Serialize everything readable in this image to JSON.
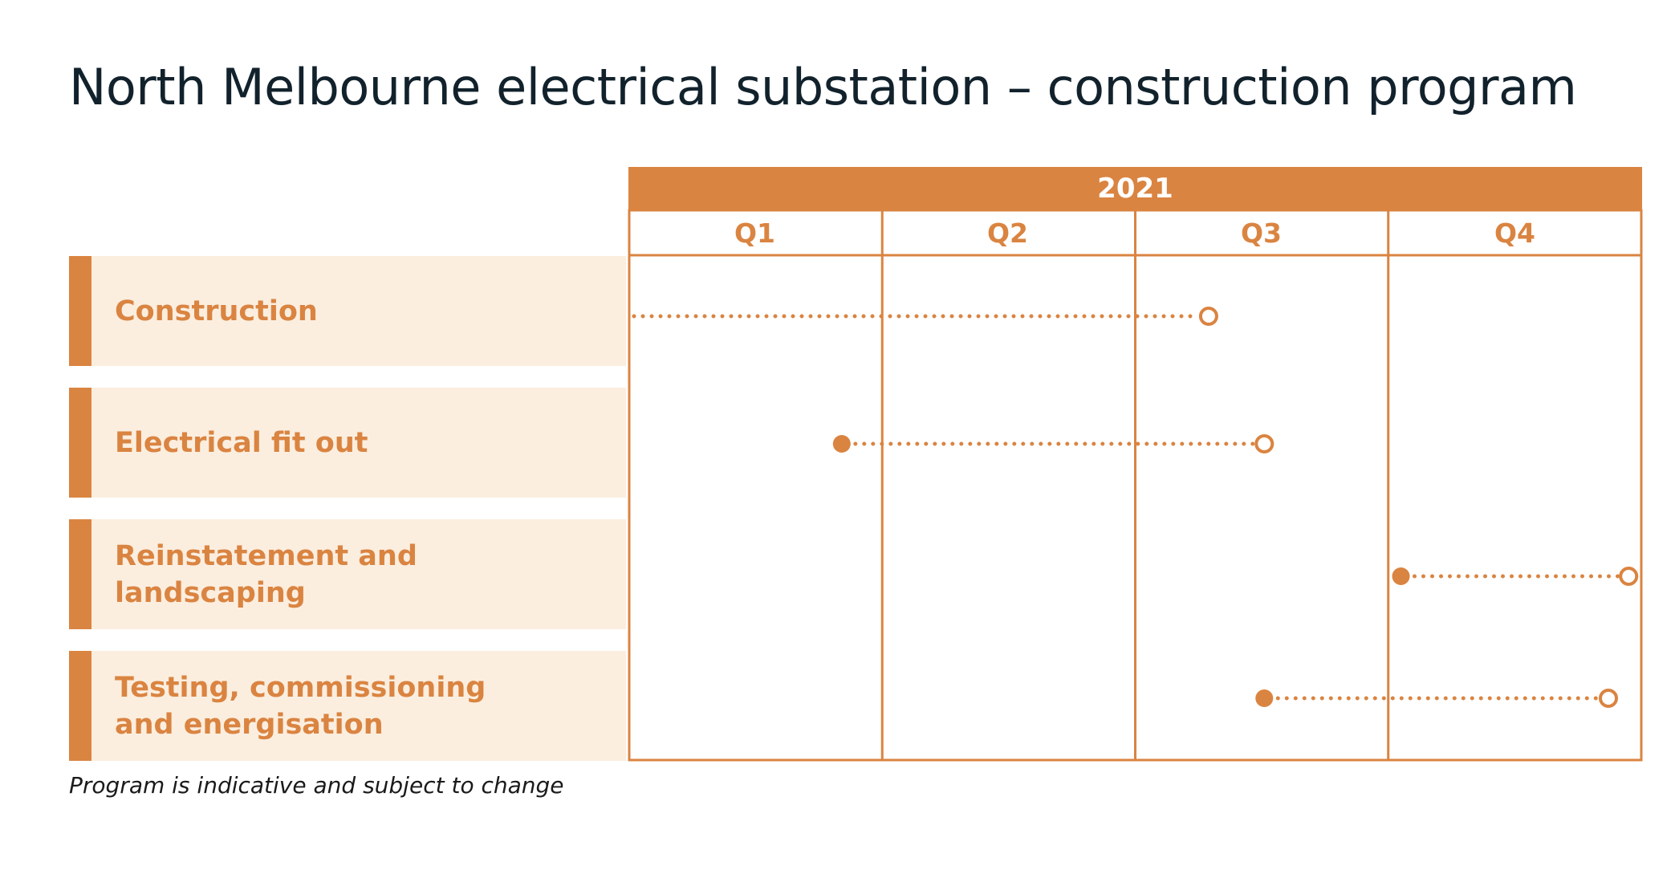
{
  "title": "North Melbourne electrical substation – construction program",
  "note": "Program is indicative and subject to change",
  "colors": {
    "accent": "#da8441",
    "row_fill": "#fbeedf",
    "title": "#12222c"
  },
  "chart_data": {
    "type": "gantt",
    "year": "2021",
    "quarters": [
      "Q1",
      "Q2",
      "Q3",
      "Q4"
    ],
    "tasks": [
      {
        "name": "Construction",
        "start_q": 0.0,
        "end_q": 2.29,
        "start_marker": "none",
        "end_marker": "open"
      },
      {
        "name": "Electrical fit out",
        "start_q": 0.84,
        "end_q": 2.51,
        "start_marker": "filled",
        "end_marker": "open"
      },
      {
        "name": "Reinstatement and landscaping",
        "start_q": 3.05,
        "end_q": 3.95,
        "start_marker": "filled",
        "end_marker": "open"
      },
      {
        "name": "Testing, commissioning\nand energisation",
        "start_q": 2.51,
        "end_q": 3.87,
        "start_marker": "filled",
        "end_marker": "open"
      }
    ]
  }
}
